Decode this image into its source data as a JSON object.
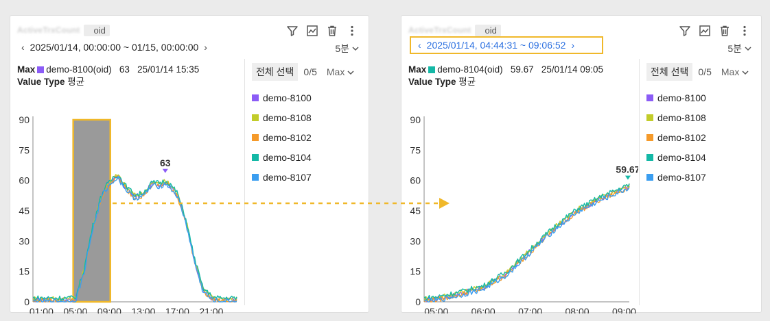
{
  "left": {
    "title_blur": "ActiveTrxCount",
    "title_suffix": "oid",
    "range": "2025/01/14, 00:00:00 ~ 01/15, 00:00:00",
    "interval": "5분",
    "max_label": "Max",
    "max_series": "demo-8100(oid)",
    "max_value": "63",
    "max_time": "25/01/14 15:35",
    "value_type_label": "Value Type",
    "value_type": "평균",
    "peak_label": "63",
    "legend": {
      "select_all": "전체 선택",
      "count": "0/5",
      "mode": "Max"
    }
  },
  "right": {
    "title_blur": "ActiveTrxCount",
    "title_suffix": "oid",
    "range": "2025/01/14, 04:44:31 ~ 09:06:52",
    "interval": "5분",
    "max_label": "Max",
    "max_series": "demo-8104(oid)",
    "max_value": "59.67",
    "max_time": "25/01/14 09:05",
    "value_type_label": "Value Type",
    "value_type": "평균",
    "peak_label": "59.67",
    "legend": {
      "select_all": "전체 선택",
      "count": "0/5",
      "mode": "Max"
    }
  },
  "series": [
    {
      "name": "demo-8100",
      "color": "#8b5cf6"
    },
    {
      "name": "demo-8108",
      "color": "#c2cc2a"
    },
    {
      "name": "demo-8102",
      "color": "#f59a2a"
    },
    {
      "name": "demo-8104",
      "color": "#14b8a6"
    },
    {
      "name": "demo-8107",
      "color": "#3b9ef0"
    }
  ],
  "colors": {
    "highlight": "#f0b82a",
    "selection": "#9a9a9a",
    "link": "#2a6fe0"
  },
  "icons": [
    "filter-icon",
    "chart-icon",
    "trash-icon",
    "more-icon"
  ],
  "chart_data": [
    {
      "type": "line",
      "ylim": [
        0,
        90
      ],
      "yticks": [
        0,
        15,
        30,
        45,
        60,
        75,
        90
      ],
      "xlim": [
        0,
        24
      ],
      "xticks": [
        "01:00",
        "05:00",
        "09:00",
        "13:00",
        "17:00",
        "21:00"
      ],
      "xtick_values": [
        1,
        5,
        9,
        13,
        17,
        21
      ],
      "selection_range": [
        4.74,
        9.11
      ],
      "peak": {
        "x": 15.58,
        "y": 63
      },
      "base_curve": [
        [
          0,
          1
        ],
        [
          4.5,
          1
        ],
        [
          5,
          1
        ],
        [
          6,
          15
        ],
        [
          7,
          36
        ],
        [
          8,
          51
        ],
        [
          8.5,
          56
        ],
        [
          9,
          58
        ],
        [
          9.5,
          61
        ],
        [
          10,
          62
        ],
        [
          10.5,
          59
        ],
        [
          11,
          56
        ],
        [
          12,
          52
        ],
        [
          13,
          53
        ],
        [
          14,
          58
        ],
        [
          15,
          58
        ],
        [
          15.6,
          59
        ],
        [
          16,
          58
        ],
        [
          17,
          53
        ],
        [
          18,
          40
        ],
        [
          19,
          21
        ],
        [
          20,
          6
        ],
        [
          21,
          2
        ],
        [
          21.5,
          1
        ],
        [
          24,
          1
        ]
      ]
    },
    {
      "type": "line",
      "ylim": [
        0,
        90
      ],
      "yticks": [
        0,
        15,
        30,
        45,
        60,
        75,
        90
      ],
      "xlim": [
        4.74,
        9.11
      ],
      "xticks": [
        "05:00",
        "06:00",
        "07:00",
        "08:00",
        "09:00"
      ],
      "xtick_values": [
        5,
        6,
        7,
        8,
        9
      ],
      "peak": {
        "x": 9.08,
        "y": 59.67
      },
      "base_curve": [
        [
          4.74,
          1
        ],
        [
          5,
          1.5
        ],
        [
          5.5,
          4
        ],
        [
          6,
          7
        ],
        [
          6.5,
          14
        ],
        [
          7,
          25
        ],
        [
          7.5,
          36
        ],
        [
          8,
          45
        ],
        [
          8.5,
          51
        ],
        [
          9,
          56
        ],
        [
          9.1,
          57
        ]
      ]
    }
  ]
}
